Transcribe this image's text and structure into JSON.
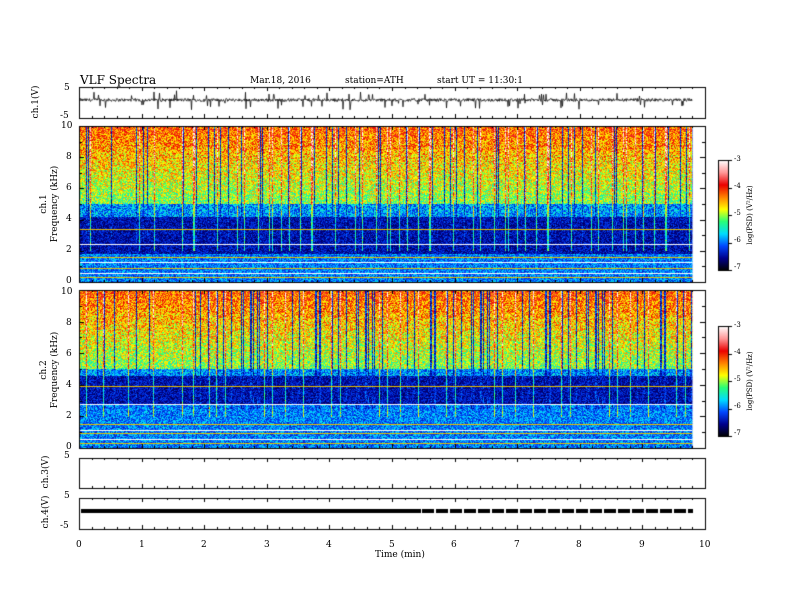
{
  "header": {
    "title": "VLF  Spectra",
    "date": "Mar.18, 2016",
    "station": "station=ATH",
    "start": "start  UT  =    11:30:1"
  },
  "chart_data": [
    {
      "type": "line",
      "panel": "ch1-waveform",
      "ylabel": "ch.1(V)",
      "ylim": [
        -5,
        5
      ],
      "y_ticks": [
        "5",
        "-5"
      ],
      "series": [
        {
          "values_summary": "noisy waveform around 0 V with spikes up to about 1.5 V"
        }
      ]
    },
    {
      "type": "heatmap",
      "panel": "ch1-spectrogram",
      "ylabel": [
        "ch.1",
        "Frequency  (kHz)"
      ],
      "ylim": [
        0,
        10
      ],
      "y_ticks": [
        "0",
        "2",
        "4",
        "6",
        "8",
        "10"
      ],
      "colorbar": {
        "label": "log(PSD) (V²/Hz)",
        "range": [
          -7,
          -3
        ],
        "ticks": [
          "-3",
          "-4",
          "-5",
          "-6",
          "-7"
        ]
      },
      "features": {
        "high_band": [
          5,
          10
        ],
        "low_band": [
          2,
          4
        ]
      }
    },
    {
      "type": "heatmap",
      "panel": "ch2-spectrogram",
      "ylabel": [
        "ch.2",
        "Frequency  (kHz)"
      ],
      "ylim": [
        0,
        10
      ],
      "y_ticks": [
        "0",
        "2",
        "4",
        "6",
        "8",
        "10"
      ],
      "colorbar": {
        "label": "log(PSD) (V²/Hz)",
        "range": [
          -7,
          -3
        ],
        "ticks": [
          "-3",
          "-4",
          "-5",
          "-6",
          "-7"
        ]
      },
      "features": {
        "high_band": [
          5,
          10
        ],
        "low_band": [
          3,
          5
        ]
      }
    },
    {
      "type": "line",
      "panel": "ch3-waveform",
      "ylabel": "ch.3(V)",
      "ylim": [
        -5,
        5
      ],
      "y_ticks": [
        "5"
      ],
      "series": [
        {
          "values_summary": "flat, no visible signal"
        }
      ]
    },
    {
      "type": "line",
      "panel": "ch4-waveform",
      "ylabel": "ch.4(V)",
      "ylim": [
        -5,
        5
      ],
      "y_ticks": [
        "5",
        "-5"
      ],
      "series": [
        {
          "values_summary": "constant level near -1 V"
        }
      ]
    }
  ],
  "x_axis": {
    "label": "Time  (min)",
    "range": [
      0,
      10
    ],
    "ticks": [
      "0",
      "1",
      "2",
      "3",
      "4",
      "5",
      "6",
      "7",
      "8",
      "9",
      "10"
    ],
    "data_end": 9.8
  },
  "colors": {
    "axis": "#000000",
    "background": "#ffffff",
    "waveform": "#111111"
  }
}
